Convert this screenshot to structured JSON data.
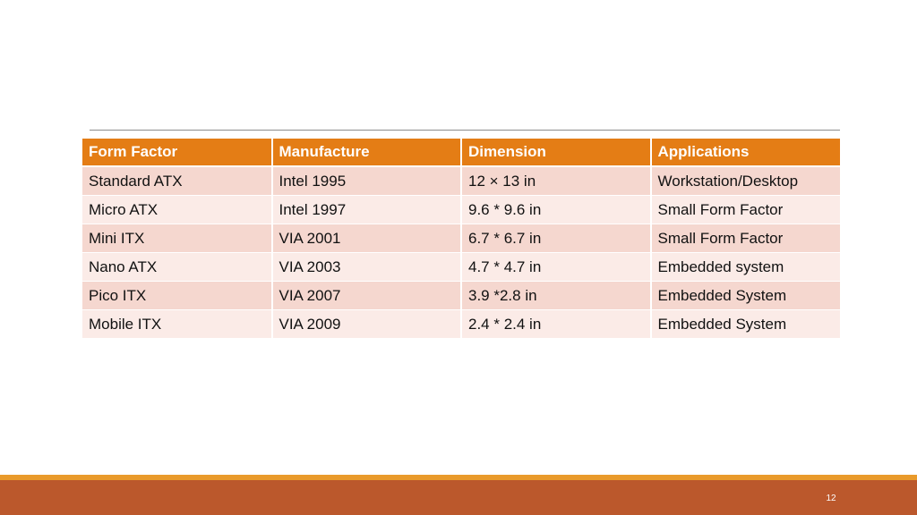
{
  "table": {
    "headers": [
      "Form Factor",
      "Manufacture",
      "Dimension",
      "Applications"
    ],
    "rows": [
      [
        "Standard ATX",
        "Intel 1995",
        "12 × 13 in",
        "Workstation/Desktop"
      ],
      [
        "Micro ATX",
        "Intel 1997",
        "9.6 * 9.6 in",
        "Small Form Factor"
      ],
      [
        "Mini ITX",
        "VIA 2001",
        "6.7 * 6.7 in",
        "Small Form Factor"
      ],
      [
        "Nano ATX",
        "VIA 2003",
        "4.7 * 4.7 in",
        "Embedded system"
      ],
      [
        "Pico ITX",
        "VIA 2007",
        "3.9 *2.8 in",
        "Embedded System"
      ],
      [
        "Mobile ITX",
        "VIA 2009",
        "2.4 * 2.4 in",
        "Embedded System"
      ]
    ]
  },
  "footer": {
    "slide_number": "12"
  },
  "colors": {
    "header_fill": "#e47d15",
    "row_odd": "#f5d7cf",
    "row_even": "#fbebe7",
    "footer_bar": "#bb582c",
    "footer_line": "#e99a2b"
  }
}
